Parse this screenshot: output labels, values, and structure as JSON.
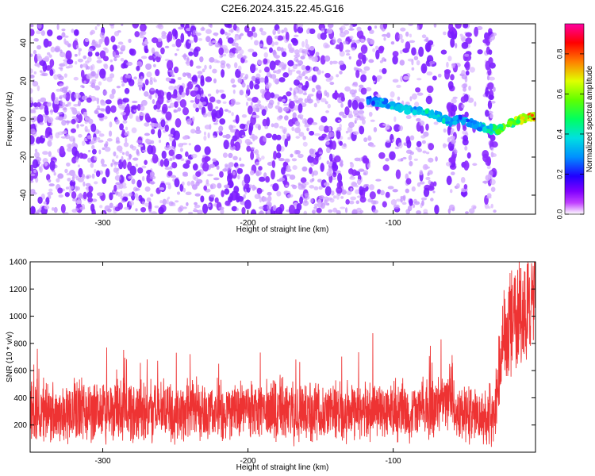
{
  "title": "C2E6.2024.315.22.45.G16",
  "chart_data": [
    {
      "type": "heatmap",
      "title": "C2E6.2024.315.22.45.G16",
      "xlabel": "Height of straight line (km)",
      "ylabel": "Frequency (Hz)",
      "xlim": [
        -350,
        -2
      ],
      "ylim": [
        -50,
        50
      ],
      "x_ticks": [
        -300,
        -200,
        -100
      ],
      "x_tick_labels": [
        "-300",
        "-200",
        "-100"
      ],
      "y_ticks": [
        -40,
        -20,
        0,
        20,
        40
      ],
      "y_tick_labels": [
        "-40",
        "-20",
        "0",
        "20",
        "40"
      ],
      "colorbar": {
        "label": "Normalized spectral amplitude",
        "range": [
          0,
          0.95
        ],
        "ticks": [
          0.0,
          0.2,
          0.4,
          0.6,
          0.8
        ],
        "tick_labels": [
          "0.0",
          "0.2",
          "0.4",
          "0.6",
          "0.8"
        ],
        "colormap": [
          "#ffffff",
          "#b44cff",
          "#6a00ff",
          "#0000ff",
          "#00c8ff",
          "#00ff80",
          "#40ff00",
          "#ffff00",
          "#ff8000",
          "#ff0000",
          "#ff00a0"
        ]
      },
      "signal_track": {
        "x": [
          -118,
          -110,
          -100,
          -90,
          -80,
          -70,
          -60,
          -55,
          -45,
          -35,
          -28,
          -20,
          -12,
          -5,
          -2
        ],
        "frequency": [
          10,
          9,
          7,
          5,
          4,
          2,
          -2,
          0,
          -3,
          -5,
          -6,
          -3,
          0,
          1,
          1
        ],
        "amplitude": [
          0.3,
          0.35,
          0.4,
          0.4,
          0.45,
          0.45,
          0.4,
          0.35,
          0.35,
          0.45,
          0.55,
          0.65,
          0.75,
          0.85,
          0.9
        ]
      },
      "noise_columns_x": [
        -60,
        -50,
        -35,
        -32
      ]
    },
    {
      "type": "line",
      "xlabel": "Height of straight line (km)",
      "ylabel": "SNR (10 * v/v)",
      "xlim": [
        -350,
        -2
      ],
      "ylim": [
        0,
        1400
      ],
      "x_ticks": [
        -300,
        -200,
        -100
      ],
      "x_tick_labels": [
        "-300",
        "-200",
        "-100"
      ],
      "y_ticks": [
        200,
        400,
        600,
        800,
        1000,
        1200,
        1400
      ],
      "y_tick_labels": [
        "200",
        "400",
        "600",
        "800",
        "1000",
        "1200",
        "1400"
      ],
      "color": "#ee3333",
      "series": [
        {
          "x": [
            -350,
            -340,
            -330,
            -320,
            -310,
            -300,
            -290,
            -280,
            -270,
            -260,
            -250,
            -240,
            -230,
            -220,
            -210,
            -200,
            -190,
            -180,
            -170,
            -160,
            -150,
            -140,
            -130,
            -120,
            -110,
            -100,
            -90,
            -80,
            -70,
            -65,
            -60,
            -58,
            -56,
            -54,
            -50,
            -45,
            -40,
            -35,
            -30,
            -28,
            -26,
            -24,
            -22,
            -20,
            -18,
            -15,
            -12,
            -10,
            -8,
            -5,
            -2
          ],
          "y": [
            300,
            310,
            300,
            305,
            300,
            295,
            300,
            300,
            305,
            300,
            300,
            300,
            305,
            300,
            300,
            300,
            295,
            300,
            300,
            300,
            305,
            300,
            300,
            300,
            310,
            310,
            300,
            305,
            320,
            380,
            450,
            350,
            300,
            270,
            270,
            270,
            260,
            255,
            290,
            500,
            700,
            820,
            900,
            950,
            1000,
            980,
            1000,
            1050,
            980,
            1050,
            1100
          ],
          "spread": [
            260,
            260,
            260,
            260,
            260,
            260,
            260,
            260,
            260,
            260,
            260,
            260,
            260,
            260,
            260,
            260,
            260,
            260,
            260,
            260,
            260,
            260,
            260,
            260,
            260,
            260,
            260,
            260,
            260,
            260,
            320,
            260,
            230,
            230,
            230,
            230,
            230,
            230,
            260,
            360,
            430,
            450,
            460,
            460,
            460,
            460,
            460,
            460,
            460,
            460,
            460
          ]
        }
      ]
    }
  ]
}
